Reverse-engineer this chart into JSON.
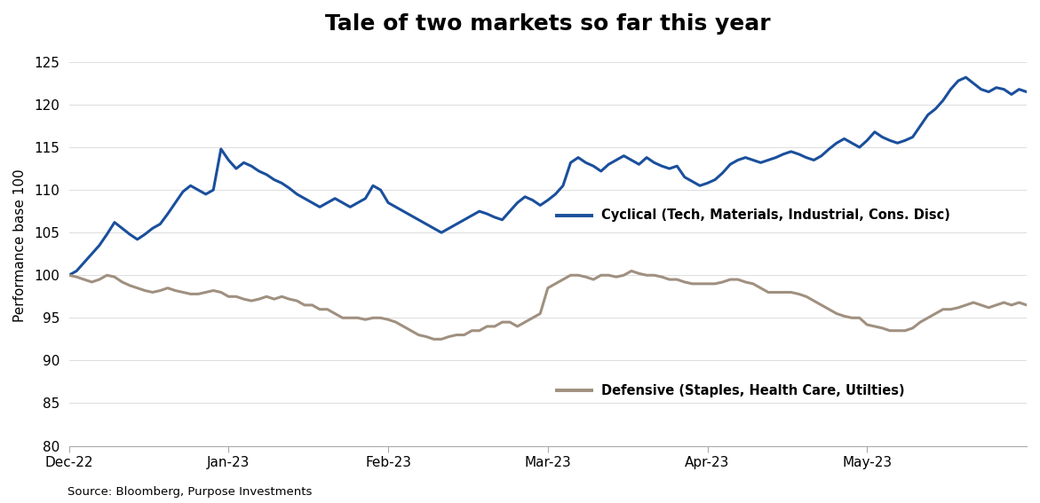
{
  "title": "Tale of two markets so far this year",
  "ylabel": "Performance base 100",
  "source": "Source: Bloomberg, Purpose Investments",
  "cyclical_label": "Cyclical (Tech, Materials, Industrial, Cons. Disc)",
  "defensive_label": "Defensive (Staples, Health Care, Utilties)",
  "cyclical_color": "#1A4F9C",
  "defensive_color": "#A09080",
  "ylim": [
    80,
    127
  ],
  "yticks": [
    80,
    85,
    90,
    95,
    100,
    105,
    110,
    115,
    120,
    125
  ],
  "title_fontsize": 18,
  "label_fontsize": 11,
  "tick_fontsize": 11,
  "line_width": 2.2,
  "background_color": "#FFFFFF",
  "cyclical_data": [
    100.0,
    100.5,
    101.5,
    102.5,
    103.5,
    104.8,
    106.2,
    105.5,
    104.8,
    104.2,
    104.8,
    105.5,
    106.0,
    107.2,
    108.5,
    109.8,
    110.5,
    110.0,
    109.5,
    110.0,
    114.8,
    113.5,
    112.5,
    113.2,
    112.8,
    112.2,
    111.8,
    111.2,
    110.8,
    110.2,
    109.5,
    109.0,
    108.5,
    108.0,
    108.5,
    109.0,
    108.5,
    108.0,
    108.5,
    109.0,
    110.5,
    110.0,
    108.5,
    108.0,
    107.5,
    107.0,
    106.5,
    106.0,
    105.5,
    105.0,
    105.5,
    106.0,
    106.5,
    107.0,
    107.5,
    107.2,
    106.8,
    106.5,
    107.5,
    108.5,
    109.2,
    108.8,
    108.2,
    108.8,
    109.5,
    110.5,
    113.2,
    113.8,
    113.2,
    112.8,
    112.2,
    113.0,
    113.5,
    114.0,
    113.5,
    113.0,
    113.8,
    113.2,
    112.8,
    112.5,
    112.8,
    111.5,
    111.0,
    110.5,
    110.8,
    111.2,
    112.0,
    113.0,
    113.5,
    113.8,
    113.5,
    113.2,
    113.5,
    113.8,
    114.2,
    114.5,
    114.2,
    113.8,
    113.5,
    114.0,
    114.8,
    115.5,
    116.0,
    115.5,
    115.0,
    115.8,
    116.8,
    116.2,
    115.8,
    115.5,
    115.8,
    116.2,
    117.5,
    118.8,
    119.5,
    120.5,
    121.8,
    122.8,
    123.2,
    122.5,
    121.8,
    121.5,
    122.0,
    121.8,
    121.2,
    121.8,
    121.5
  ],
  "defensive_data": [
    100.0,
    99.8,
    99.5,
    99.2,
    99.5,
    100.0,
    99.8,
    99.2,
    98.8,
    98.5,
    98.2,
    98.0,
    98.2,
    98.5,
    98.2,
    98.0,
    97.8,
    97.8,
    98.0,
    98.2,
    98.0,
    97.5,
    97.5,
    97.2,
    97.0,
    97.2,
    97.5,
    97.2,
    97.5,
    97.2,
    97.0,
    96.5,
    96.5,
    96.0,
    96.0,
    95.5,
    95.0,
    95.0,
    95.0,
    94.8,
    95.0,
    95.0,
    94.8,
    94.5,
    94.0,
    93.5,
    93.0,
    92.8,
    92.5,
    92.5,
    92.8,
    93.0,
    93.0,
    93.5,
    93.5,
    94.0,
    94.0,
    94.5,
    94.5,
    94.0,
    94.5,
    95.0,
    95.5,
    98.5,
    99.0,
    99.5,
    100.0,
    100.0,
    99.8,
    99.5,
    100.0,
    100.0,
    99.8,
    100.0,
    100.5,
    100.2,
    100.0,
    100.0,
    99.8,
    99.5,
    99.5,
    99.2,
    99.0,
    99.0,
    99.0,
    99.0,
    99.2,
    99.5,
    99.5,
    99.2,
    99.0,
    98.5,
    98.0,
    98.0,
    98.0,
    98.0,
    97.8,
    97.5,
    97.0,
    96.5,
    96.0,
    95.5,
    95.2,
    95.0,
    95.0,
    94.2,
    94.0,
    93.8,
    93.5,
    93.5,
    93.5,
    93.8,
    94.5,
    95.0,
    95.5,
    96.0,
    96.0,
    96.2,
    96.5,
    96.8,
    96.5,
    96.2,
    96.5,
    96.8,
    96.5,
    96.8,
    96.5
  ],
  "x_tick_labels": [
    "Dec-22",
    "Jan-23",
    "Feb-23",
    "Mar-23",
    "Apr-23",
    "May-23"
  ],
  "x_tick_positions": [
    0,
    21,
    42,
    63,
    84,
    105
  ]
}
